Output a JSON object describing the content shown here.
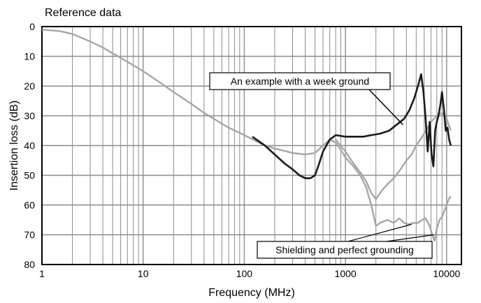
{
  "header": {
    "title": "Reference data"
  },
  "chart_data": {
    "type": "line",
    "xlabel": "Frequency (MHz)",
    "ylabel": "Insertion loss (dB)",
    "x_scale": "log",
    "xlim": [
      1,
      14000
    ],
    "ylim": [
      0,
      80
    ],
    "y_inverted": true,
    "grid": true,
    "x_tick_labels": [
      "1",
      "10",
      "100",
      "1000",
      "10000"
    ],
    "y_tick_labels": [
      "0",
      "10",
      "20",
      "30",
      "40",
      "50",
      "60",
      "70",
      "80"
    ],
    "series": [
      {
        "key": "weak_ground",
        "color": "#1a1a1a",
        "points": [
          [
            120,
            37
          ],
          [
            160,
            40
          ],
          [
            200,
            43
          ],
          [
            250,
            46
          ],
          [
            300,
            48
          ],
          [
            350,
            50
          ],
          [
            400,
            51
          ],
          [
            450,
            51
          ],
          [
            500,
            50
          ],
          [
            550,
            46
          ],
          [
            600,
            42
          ],
          [
            700,
            38
          ],
          [
            800,
            36.5
          ],
          [
            1000,
            37
          ],
          [
            1200,
            37
          ],
          [
            1500,
            37
          ],
          [
            1800,
            36.5
          ],
          [
            2200,
            36
          ],
          [
            2700,
            35
          ],
          [
            3200,
            33
          ],
          [
            3800,
            31
          ],
          [
            4300,
            28
          ],
          [
            4800,
            24
          ],
          [
            5300,
            19
          ],
          [
            5600,
            16
          ],
          [
            5900,
            22
          ],
          [
            6200,
            31
          ],
          [
            6500,
            42
          ],
          [
            6800,
            32
          ],
          [
            7100,
            43
          ],
          [
            7400,
            47
          ],
          [
            7700,
            35
          ],
          [
            8000,
            32
          ],
          [
            8300,
            30
          ],
          [
            8700,
            26
          ],
          [
            9000,
            22
          ],
          [
            9400,
            28
          ],
          [
            9800,
            35
          ],
          [
            10200,
            34
          ],
          [
            10600,
            38
          ],
          [
            11000,
            40
          ]
        ]
      },
      {
        "key": "shielding_perfect_grounding",
        "color": "#a6a6a6",
        "points": [
          [
            1,
            1
          ],
          [
            1.5,
            1.5
          ],
          [
            2,
            2.5
          ],
          [
            3,
            5
          ],
          [
            4,
            7
          ],
          [
            5,
            9
          ],
          [
            6,
            10.5
          ],
          [
            8,
            13
          ],
          [
            10,
            15
          ],
          [
            15,
            19
          ],
          [
            20,
            22
          ],
          [
            30,
            26
          ],
          [
            40,
            29
          ],
          [
            50,
            31
          ],
          [
            70,
            34
          ],
          [
            100,
            36.5
          ],
          [
            130,
            38.5
          ],
          [
            160,
            40
          ],
          [
            200,
            41
          ],
          [
            300,
            42.5
          ],
          [
            400,
            43
          ],
          [
            500,
            42.5
          ],
          [
            600,
            40
          ],
          [
            700,
            38
          ],
          [
            800,
            39
          ],
          [
            900,
            41.5
          ],
          [
            1000,
            44
          ],
          [
            1200,
            47
          ],
          [
            1400,
            50
          ],
          [
            1600,
            54
          ],
          [
            1800,
            60
          ],
          [
            2000,
            67
          ],
          [
            2200,
            66
          ],
          [
            2600,
            65
          ],
          [
            3000,
            66
          ],
          [
            3400,
            64.5
          ],
          [
            3800,
            66
          ],
          [
            4200,
            66.5
          ],
          [
            4700,
            66
          ],
          [
            5200,
            66
          ],
          [
            5700,
            65
          ],
          [
            6200,
            64.5
          ],
          [
            6800,
            67
          ],
          [
            7200,
            70
          ],
          [
            7600,
            72
          ],
          [
            8000,
            68
          ],
          [
            8500,
            65
          ],
          [
            9000,
            64
          ],
          [
            9500,
            62
          ],
          [
            10000,
            60
          ],
          [
            10500,
            58
          ],
          [
            11000,
            57
          ]
        ]
      },
      {
        "key": "shielding_perfect_grounding_upper",
        "color": "#a6a6a6",
        "points": [
          [
            800,
            38
          ],
          [
            1000,
            42
          ],
          [
            1200,
            46
          ],
          [
            1400,
            49
          ],
          [
            1600,
            52
          ],
          [
            1800,
            56
          ],
          [
            2000,
            58
          ],
          [
            2300,
            55
          ],
          [
            2600,
            53
          ],
          [
            3000,
            51
          ],
          [
            3500,
            48
          ],
          [
            4000,
            45
          ],
          [
            4500,
            43
          ],
          [
            5000,
            40
          ],
          [
            5500,
            38
          ],
          [
            6000,
            36
          ],
          [
            6500,
            34
          ],
          [
            7000,
            32
          ],
          [
            7500,
            31
          ],
          [
            8000,
            30
          ],
          [
            9000,
            29
          ],
          [
            10000,
            31
          ],
          [
            11000,
            35
          ]
        ]
      }
    ],
    "annotations": [
      {
        "key": "weak_ground",
        "text": "An example with a week ground",
        "points_to": [
          3700,
          33
        ]
      },
      {
        "key": "shielding",
        "text": "Shielding and perfect grounding",
        "points_to": [
          [
            4500,
            66.5
          ],
          [
            7500,
            70
          ]
        ]
      }
    ]
  }
}
